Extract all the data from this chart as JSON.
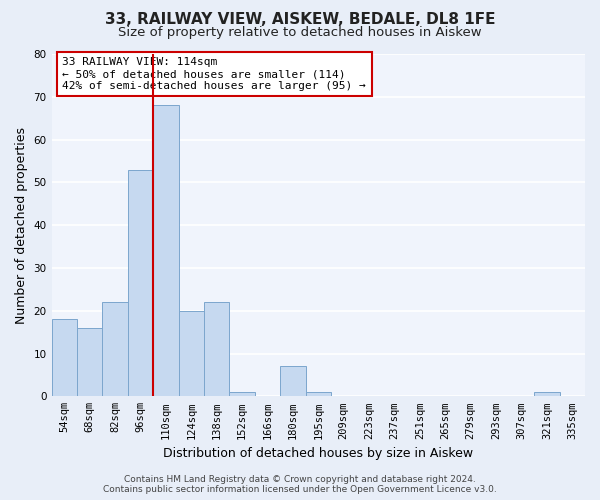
{
  "title1": "33, RAILWAY VIEW, AISKEW, BEDALE, DL8 1FE",
  "title2": "Size of property relative to detached houses in Aiskew",
  "xlabel": "Distribution of detached houses by size in Aiskew",
  "ylabel": "Number of detached properties",
  "categories": [
    "54sqm",
    "68sqm",
    "82sqm",
    "96sqm",
    "110sqm",
    "124sqm",
    "138sqm",
    "152sqm",
    "166sqm",
    "180sqm",
    "195sqm",
    "209sqm",
    "223sqm",
    "237sqm",
    "251sqm",
    "265sqm",
    "279sqm",
    "293sqm",
    "307sqm",
    "321sqm",
    "335sqm"
  ],
  "values": [
    18,
    16,
    22,
    53,
    68,
    20,
    22,
    1,
    0,
    7,
    1,
    0,
    0,
    0,
    0,
    0,
    0,
    0,
    0,
    1,
    0
  ],
  "bar_color": "#c6d9f0",
  "bar_edge_color": "#7ca6cd",
  "highlight_index": 4,
  "highlight_line_color": "#cc0000",
  "ylim": [
    0,
    80
  ],
  "yticks": [
    0,
    10,
    20,
    30,
    40,
    50,
    60,
    70,
    80
  ],
  "annotation_box_text": "33 RAILWAY VIEW: 114sqm\n← 50% of detached houses are smaller (114)\n42% of semi-detached houses are larger (95) →",
  "footer_line1": "Contains HM Land Registry data © Crown copyright and database right 2024.",
  "footer_line2": "Contains public sector information licensed under the Open Government Licence v3.0.",
  "bg_color": "#e8eef8",
  "plot_bg_color": "#f0f4fc",
  "grid_color": "#ffffff",
  "title1_fontsize": 11,
  "title2_fontsize": 9.5,
  "axis_label_fontsize": 9,
  "tick_fontsize": 7.5,
  "annotation_fontsize": 8,
  "footer_fontsize": 6.5
}
